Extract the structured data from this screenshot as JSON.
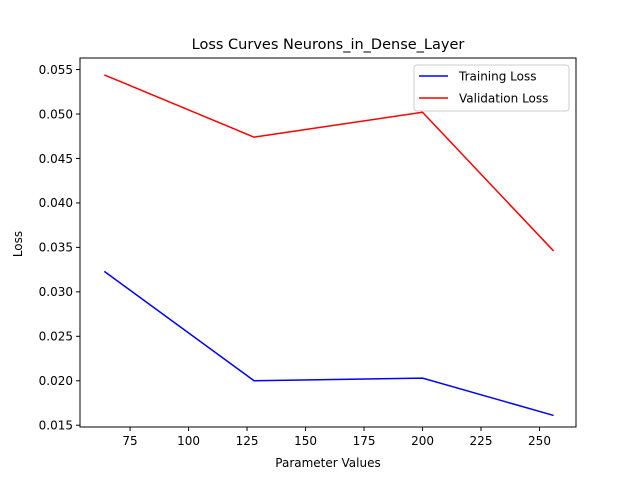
{
  "chart_data": {
    "type": "line",
    "title": "Loss Curves Neurons_in_Dense_Layer",
    "xlabel": "Parameter Values",
    "ylabel": "Loss",
    "xlim": [
      53.6,
      265.6
    ],
    "ylim": [
      0.0148,
      0.0563
    ],
    "xticks": [
      75,
      100,
      125,
      150,
      175,
      200,
      225,
      250
    ],
    "xtick_labels": [
      "75",
      "100",
      "125",
      "150",
      "175",
      "200",
      "225",
      "250"
    ],
    "yticks": [
      0.015,
      0.02,
      0.025,
      0.03,
      0.035,
      0.04,
      0.045,
      0.05,
      0.055
    ],
    "ytick_labels": [
      "0.015",
      "0.020",
      "0.025",
      "0.030",
      "0.035",
      "0.040",
      "0.045",
      "0.050",
      "0.055"
    ],
    "grid": false,
    "legend_position": "top-right",
    "x": [
      64,
      128,
      200,
      256
    ],
    "series": [
      {
        "name": "Training Loss",
        "color": "#0000ff",
        "values": [
          0.0323,
          0.02,
          0.0203,
          0.0161
        ]
      },
      {
        "name": "Validation Loss",
        "color": "#ff0000",
        "values": [
          0.0544,
          0.0474,
          0.0502,
          0.0346
        ]
      }
    ]
  }
}
